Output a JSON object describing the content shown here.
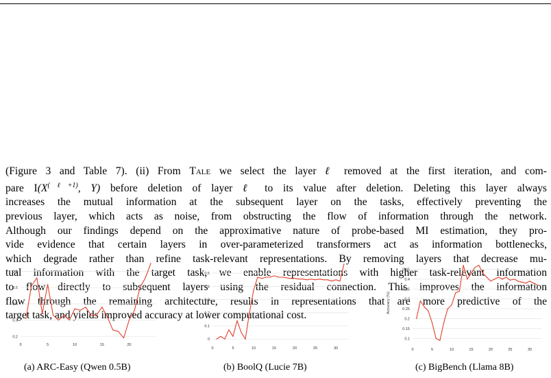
{
  "paragraph": {
    "l1": "(Figure 3 and Table 7). (ii) From ",
    "l1_tale": "Tale",
    "l1b": " we select the layer ",
    "l1_ell": "ℓ",
    "l1c": " removed at the first iteration, and com-",
    "l2a": "pare I",
    "l2_math": "(X",
    "l2_sup": "(ℓ+1)",
    "l2_math2": ", Y)",
    "l2b": " before deletion of layer ",
    "l2_ell": "ℓ",
    "l2c": " to its value after deletion. Deleting this layer always",
    "l3": "increases the mutual information at the subsequent layer on the tasks, effectively preventing the",
    "l4": "previous layer, which acts as noise, from obstructing the flow of information through the network.",
    "l5": "Although our findings depend on the approximative nature of probe-based MI estimation, they pro-",
    "l6": "vide evidence that certain layers in over-parameterized transformers act as information bottlenecks,",
    "l7": "which degrade rather than refine task-relevant representations. By removing layers that decrease mu-",
    "l8": "tual information with the target task, we enable representations with higher task-relevant information",
    "l9": "to flow directly to subsequent layers using the residual connection. This improves the information",
    "l10": "flow through the remaining architecture, results in representations that are more predictive of the",
    "l11": "target task, and yields improved accuracy at lower computational cost."
  },
  "captions": {
    "a": "(a) ARC-Easy (Qwen 0.5B)",
    "b": "(b) BoolQ (Lucie 7B)",
    "c": "(c) BigBench (Llama 8B)"
  },
  "colors": {
    "line": "#e0402a",
    "grid": "#e6e6e6"
  },
  "chart_data": [
    {
      "type": "line",
      "title": "",
      "xlabel": "",
      "ylabel": "",
      "xlim": [
        0,
        25
      ],
      "ylim": [
        0.18,
        0.67
      ],
      "xticks": [
        0,
        5,
        10,
        15,
        20
      ],
      "yticks": [
        0.2,
        0.3,
        0.4,
        0.5,
        0.6
      ],
      "xtick_labels": [
        "0",
        "5",
        "10",
        "15",
        "20"
      ],
      "ytick_labels": [
        "0.2",
        "0.3",
        "0.4",
        "0.5",
        "0.6"
      ],
      "grid": "horizontal",
      "series": [
        {
          "x": [
            1,
            2,
            3,
            4,
            5,
            6,
            7,
            8,
            9,
            10,
            11,
            12,
            13,
            14,
            15,
            16,
            17,
            18,
            19,
            20,
            21,
            22,
            23,
            24
          ],
          "values": [
            0.31,
            0.51,
            0.56,
            0.34,
            0.52,
            0.33,
            0.3,
            0.33,
            0.3,
            0.37,
            0.36,
            0.38,
            0.33,
            0.33,
            0.38,
            0.32,
            0.24,
            0.23,
            0.19,
            0.3,
            0.36,
            0.5,
            0.56,
            0.65
          ]
        }
      ]
    },
    {
      "type": "line",
      "title": "",
      "xlabel": "",
      "ylabel": "",
      "xlim": [
        0,
        33
      ],
      "ylim": [
        -0.03,
        0.6
      ],
      "xticks": [
        0,
        5,
        10,
        15,
        20,
        25,
        30
      ],
      "yticks": [
        0,
        0.1,
        0.2,
        0.3,
        0.4,
        0.5
      ],
      "xtick_labels": [
        "0",
        "5",
        "10",
        "15",
        "20",
        "25",
        "30"
      ],
      "ytick_labels": [
        "0",
        "0.1",
        "0.2",
        "0.3",
        "0.4",
        "0.5"
      ],
      "grid": "horizontal",
      "series": [
        {
          "x": [
            1,
            2,
            3,
            4,
            5,
            6,
            7,
            8,
            9,
            10,
            11,
            12,
            13,
            14,
            15,
            16,
            17,
            18,
            19,
            20,
            21,
            22,
            23,
            24,
            25,
            26,
            27,
            28,
            29,
            30,
            31,
            32
          ],
          "values": [
            0.0,
            0.02,
            0.0,
            0.07,
            0.02,
            0.14,
            0.05,
            0.0,
            0.2,
            0.37,
            0.47,
            0.46,
            0.47,
            0.47,
            0.48,
            0.47,
            0.47,
            0.465,
            0.46,
            0.46,
            0.455,
            0.455,
            0.45,
            0.455,
            0.45,
            0.455,
            0.45,
            0.45,
            0.44,
            0.45,
            0.44,
            0.57
          ]
        }
      ]
    },
    {
      "type": "line",
      "title": "",
      "xlabel": "",
      "ylabel": "Accuracy (%)",
      "xlim": [
        0,
        33
      ],
      "ylim": [
        0.07,
        0.49
      ],
      "xticks": [
        0,
        5,
        10,
        15,
        20,
        25,
        30
      ],
      "yticks": [
        0.1,
        0.15,
        0.2,
        0.25,
        0.3,
        0.35,
        0.4,
        0.45
      ],
      "xtick_labels": [
        "0",
        "5",
        "10",
        "15",
        "20",
        "25",
        "30"
      ],
      "ytick_labels": [
        "0.1",
        "0.15",
        "0.2",
        "0.25",
        "0.3",
        "0.35",
        "0.4",
        "0.45"
      ],
      "grid": "horizontal",
      "series": [
        {
          "x": [
            1,
            2,
            3,
            4,
            5,
            6,
            7,
            8,
            9,
            10,
            11,
            12,
            13,
            14,
            15,
            16,
            17,
            18,
            19,
            20,
            21,
            22,
            23,
            24,
            25,
            26,
            27,
            28,
            29,
            30,
            31,
            32
          ],
          "values": [
            0.2,
            0.29,
            0.26,
            0.24,
            0.18,
            0.1,
            0.09,
            0.18,
            0.25,
            0.27,
            0.33,
            0.34,
            0.47,
            0.4,
            0.43,
            0.46,
            0.47,
            0.43,
            0.41,
            0.39,
            0.4,
            0.41,
            0.4,
            0.41,
            0.395,
            0.4,
            0.39,
            0.385,
            0.38,
            0.39,
            0.38,
            0.37
          ]
        }
      ]
    }
  ]
}
